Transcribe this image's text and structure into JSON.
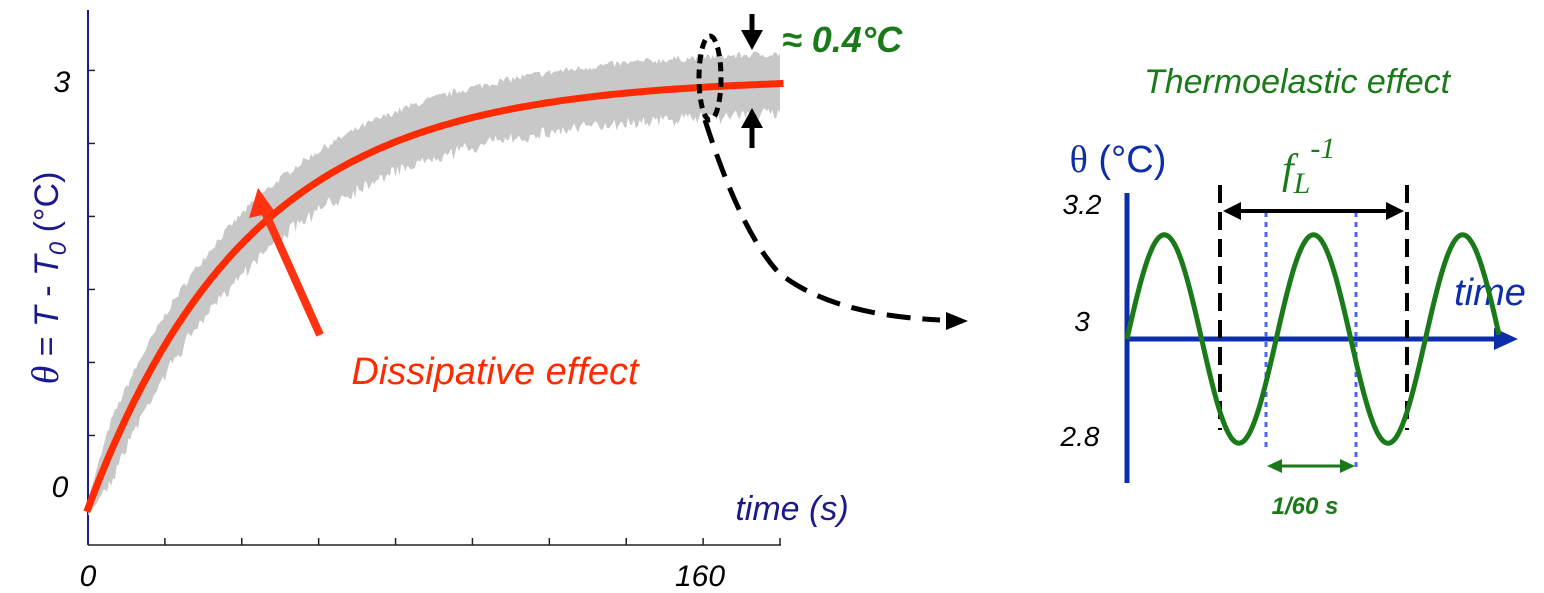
{
  "chart_data": [
    {
      "type": "line",
      "ylabel": {
        "symbol": "θ",
        "rest": " = ",
        "T": "T",
        "minus": " - ",
        "T0": "T",
        "T0_sub": "0",
        "unit": " (°C)"
      },
      "xlabel": "time (s)",
      "x_ticks": [
        {
          "value": 0,
          "label": "0"
        },
        {
          "value": 160,
          "label": "160"
        }
      ],
      "y_ticks": [
        {
          "value": 0,
          "label": "0"
        },
        {
          "value": 3,
          "label": "3"
        }
      ],
      "xlim": [
        0,
        180
      ],
      "ylim": [
        -0.25,
        3.4
      ],
      "x_minor_ticks": [
        20,
        40,
        60,
        80,
        100,
        120,
        140,
        160,
        180
      ],
      "y_minor_ticks": [
        0.5,
        1.0,
        1.5,
        2.0,
        2.5,
        3.0
      ],
      "series": [
        {
          "kind": "smooth fit",
          "color": "#ff2a00",
          "model": "exponential rise",
          "x_range": [
            0,
            180
          ],
          "steady_value": 2.95,
          "time_constant": 42
        },
        {
          "kind": "raw noisy signal band",
          "color": "#c8c8c8",
          "band_half_width": 0.2
        }
      ],
      "annotations": {
        "dissipative": {
          "text": "Dissipative effect",
          "color": "#ff2a00",
          "points_to_x": 45
        },
        "amplitude": {
          "text": "≈ 0.4°C",
          "color": "#1a7a1a"
        }
      }
    },
    {
      "type": "line",
      "title": "Thermoelastic effect",
      "title_color": "#1a7a1a",
      "ylabel": {
        "symbol": "θ",
        "unit": " (°C)"
      },
      "xlabel": "time",
      "y_ticks": [
        {
          "value": 3.2,
          "label": "3.2"
        },
        {
          "value": 3.0,
          "label": "3"
        },
        {
          "value": 2.8,
          "label": "2.8"
        }
      ],
      "ylim": [
        2.8,
        3.2
      ],
      "series": [
        {
          "kind": "sine",
          "color": "#1a7a1a",
          "center": 3.0,
          "amplitude": 0.15,
          "periods": 2.5
        }
      ],
      "axis_color": "#0d2ea8",
      "period_label": {
        "f": "f",
        "sub": "L",
        "sup": "-1"
      },
      "half_period_label": "1/60 s"
    }
  ]
}
